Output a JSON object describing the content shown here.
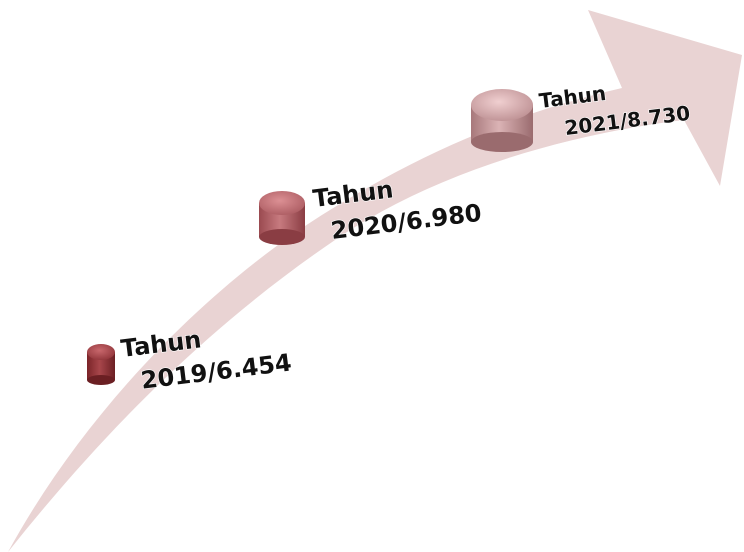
{
  "milestones": [
    {
      "year_label": "Tahun",
      "value_label": "2019/6.454",
      "color": "#9b3b40"
    },
    {
      "year_label": "Tahun",
      "value_label": "2020/6.980",
      "color": "#b8646a"
    },
    {
      "year_label": "Tahun",
      "value_label": "2021/8.730",
      "color": "#c99a9c"
    }
  ],
  "arrow": {
    "color": "#e9d3d3"
  }
}
